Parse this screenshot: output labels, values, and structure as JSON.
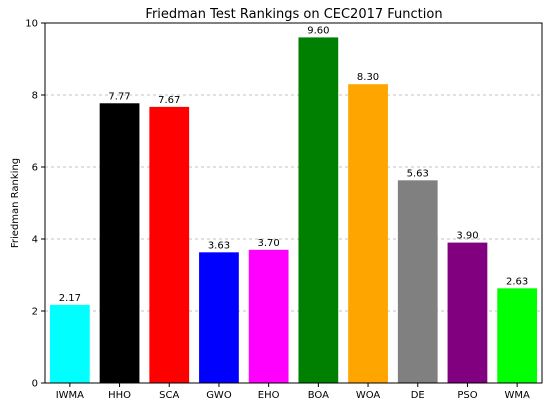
{
  "chart_data": {
    "type": "bar",
    "title": "Friedman Test Rankings on CEC2017 Function",
    "xlabel": "",
    "ylabel": "Friedman Ranking",
    "categories": [
      "IWMA",
      "HHO",
      "SCA",
      "GWO",
      "EHO",
      "BOA",
      "WOA",
      "DE",
      "PSO",
      "WMA"
    ],
    "values": [
      2.17,
      7.77,
      7.67,
      3.63,
      3.7,
      9.6,
      8.3,
      5.63,
      3.9,
      2.63
    ],
    "value_labels": [
      "2.17",
      "7.77",
      "7.67",
      "3.63",
      "3.70",
      "9.60",
      "8.30",
      "5.63",
      "3.90",
      "2.63"
    ],
    "colors": [
      "#00ffff",
      "#000000",
      "#ff0000",
      "#0000ff",
      "#ff00ff",
      "#008000",
      "#ffa500",
      "#808080",
      "#800080",
      "#00ff00"
    ],
    "ylim": [
      0,
      10
    ],
    "yticks": [
      0,
      2,
      4,
      6,
      8,
      10
    ],
    "grid": "y-dashed",
    "legend": "none"
  }
}
